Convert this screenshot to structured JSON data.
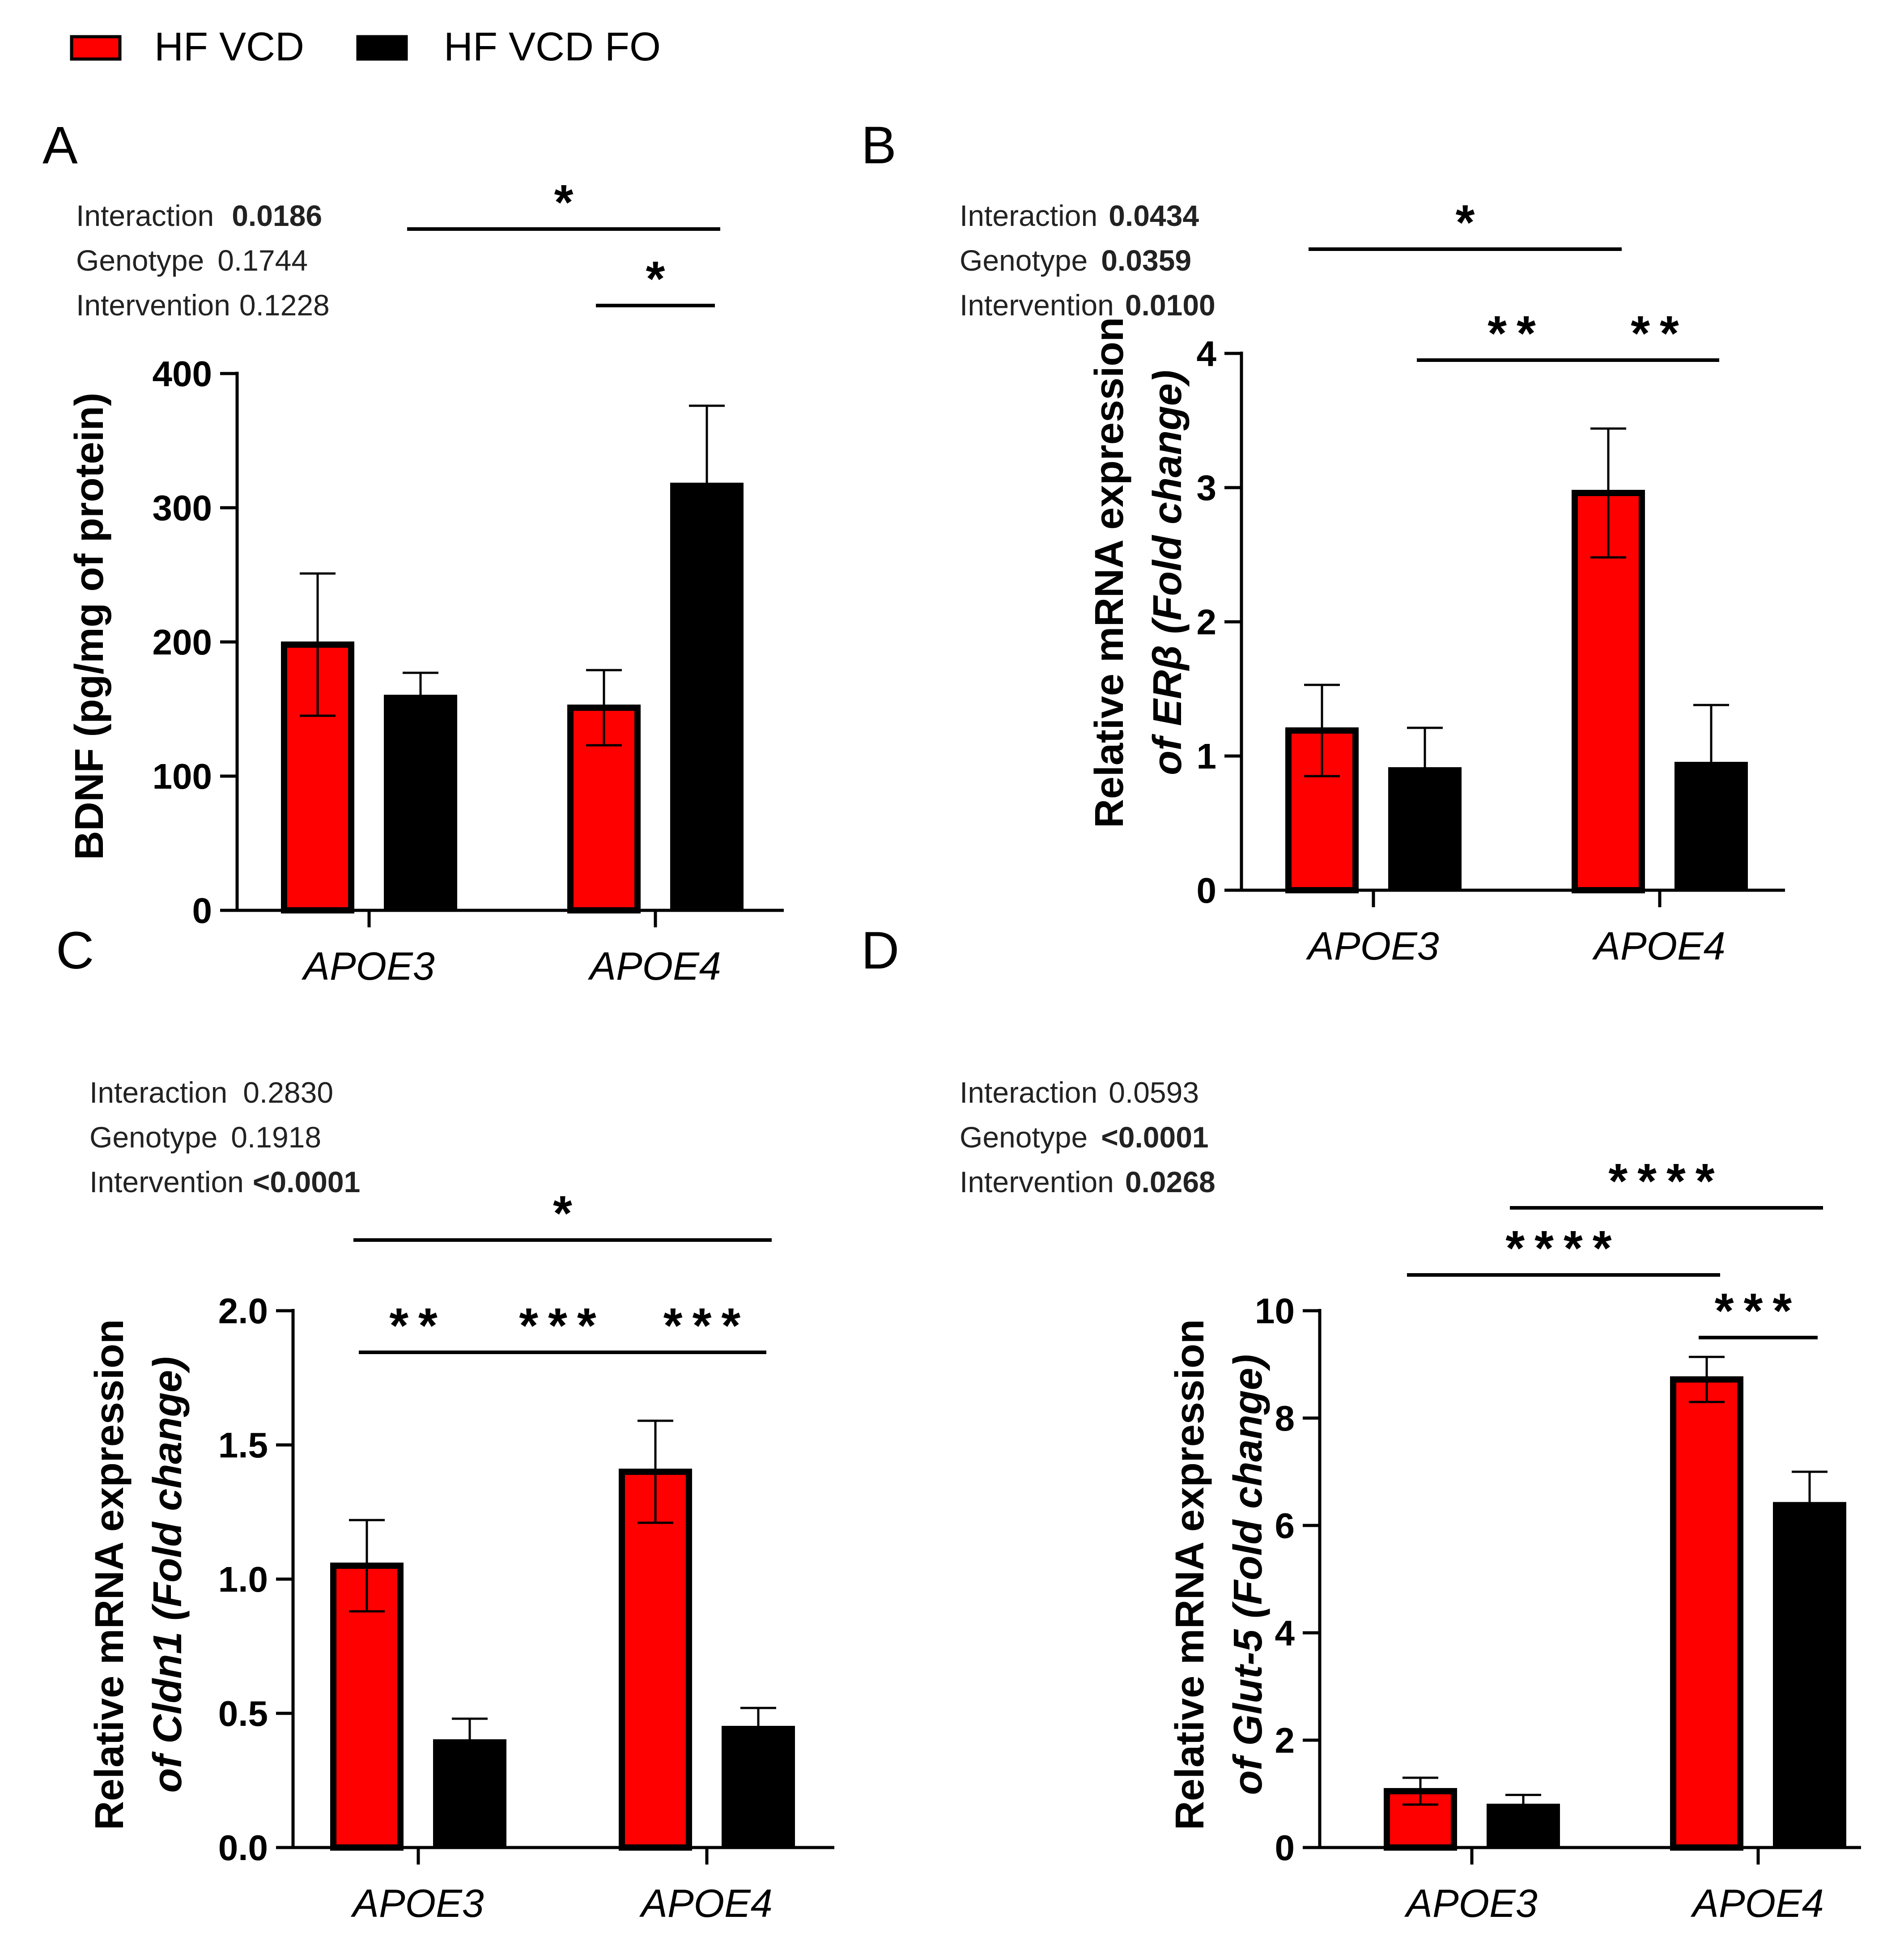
{
  "legend": {
    "items": [
      {
        "label": "HF VCD",
        "color": "#ff0000"
      },
      {
        "label": "HF VCD FO",
        "color": "#000000"
      }
    ]
  },
  "colors": {
    "red": "#ff0000",
    "black": "#000000"
  },
  "chart_data": [
    {
      "panel": "A",
      "type": "bar",
      "ylabel": "BDNF (pg/mg of protein)",
      "ylabel_parts": [
        {
          "text": "BDNF (pg/mg of protein)",
          "italic": false
        }
      ],
      "categories": [
        "APOE3",
        "APOE4"
      ],
      "series": [
        {
          "name": "HF VCD",
          "values": [
            198,
            151
          ],
          "errors": [
            53,
            28
          ]
        },
        {
          "name": "HF VCD FO",
          "values": [
            160,
            318
          ],
          "errors": [
            17,
            58
          ]
        }
      ],
      "ylim": [
        0,
        400
      ],
      "yticks": [
        "0",
        "100",
        "200",
        "300",
        "400"
      ],
      "stats": [
        {
          "label": "Interaction",
          "value": "0.0186",
          "bold": true
        },
        {
          "label": "Genotype",
          "value": "0.1744",
          "bold": false
        },
        {
          "label": "Intervention",
          "value": "0.1228",
          "bold": false
        }
      ],
      "significance": [
        {
          "from": [
            0,
            1
          ],
          "to": [
            1,
            1
          ],
          "label": "*",
          "level": 1
        },
        {
          "from": [
            1,
            0
          ],
          "to": [
            1,
            1
          ],
          "label": "*",
          "level": 0
        }
      ]
    },
    {
      "panel": "B",
      "type": "bar",
      "ylabel": "Relative mRNA expression of ERβ (Fold change)",
      "ylabel_parts": [
        {
          "text": "Relative mRNA expression",
          "italic": false
        },
        {
          "text": "of ERβ (Fold change)",
          "italic": true
        }
      ],
      "categories": [
        "APOE3",
        "APOE4"
      ],
      "series": [
        {
          "name": "HF VCD",
          "values": [
            1.19,
            2.96
          ],
          "errors": [
            0.34,
            0.48
          ]
        },
        {
          "name": "HF VCD FO",
          "values": [
            0.91,
            0.95
          ],
          "errors": [
            0.3,
            0.43
          ]
        }
      ],
      "ylim": [
        0,
        4
      ],
      "yticks": [
        "0",
        "1",
        "2",
        "3",
        "4"
      ],
      "stats": [
        {
          "label": "Interaction",
          "value": "0.0434",
          "bold": true
        },
        {
          "label": "Genotype",
          "value": "0.0359",
          "bold": true
        },
        {
          "label": "Intervention",
          "value": "0.0100",
          "bold": true
        }
      ],
      "significance": [
        {
          "from": [
            0,
            0
          ],
          "to": [
            1,
            0
          ],
          "label": "*",
          "level": 1
        },
        {
          "from": [
            0,
            1
          ],
          "to": [
            1,
            0
          ],
          "label": "**",
          "level": 0
        },
        {
          "from": [
            1,
            0
          ],
          "to": [
            1,
            1
          ],
          "label": "**",
          "level": 0
        }
      ]
    },
    {
      "panel": "C",
      "type": "bar",
      "ylabel": "Relative mRNA expression of Cldn1 (Fold change)",
      "ylabel_parts": [
        {
          "text": "Relative mRNA expression",
          "italic": false
        },
        {
          "text": "of Cldn1 (Fold change)",
          "italic": true
        }
      ],
      "categories": [
        "APOE3",
        "APOE4"
      ],
      "series": [
        {
          "name": "HF VCD",
          "values": [
            1.05,
            1.4
          ],
          "errors": [
            0.17,
            0.19
          ]
        },
        {
          "name": "HF VCD FO",
          "values": [
            0.4,
            0.45
          ],
          "errors": [
            0.08,
            0.07
          ]
        }
      ],
      "ylim": [
        0,
        2.0
      ],
      "yticks": [
        "0.0",
        "0.5",
        "1.0",
        "1.5",
        "2.0"
      ],
      "stats": [
        {
          "label": "Interaction",
          "value": "0.2830",
          "bold": false
        },
        {
          "label": "Genotype",
          "value": "0.1918",
          "bold": false
        },
        {
          "label": "Intervention",
          "value": "<0.0001",
          "bold": true
        }
      ],
      "significance": [
        {
          "from": [
            0,
            0
          ],
          "to": [
            1,
            1
          ],
          "label": "*",
          "level": 1
        },
        {
          "from": [
            0,
            0
          ],
          "to": [
            0,
            1
          ],
          "label": "**",
          "level": 0
        },
        {
          "from": [
            0,
            1
          ],
          "to": [
            1,
            0
          ],
          "label": "***",
          "level": 0
        },
        {
          "from": [
            1,
            0
          ],
          "to": [
            1,
            1
          ],
          "label": "***",
          "level": 0
        }
      ]
    },
    {
      "panel": "D",
      "type": "bar",
      "ylabel": "Relative mRNA expression of Glut-5 (Fold change)",
      "ylabel_parts": [
        {
          "text": "Relative mRNA expression",
          "italic": false
        },
        {
          "text": "of Glut-5 (Fold change)",
          "italic": true
        }
      ],
      "categories": [
        "APOE3",
        "APOE4"
      ],
      "series": [
        {
          "name": "HF VCD",
          "values": [
            1.05,
            8.72
          ],
          "errors": [
            0.25,
            0.42
          ]
        },
        {
          "name": "HF VCD FO",
          "values": [
            0.8,
            6.42
          ],
          "errors": [
            0.18,
            0.58
          ]
        }
      ],
      "ylim": [
        0,
        10
      ],
      "yticks": [
        "0",
        "2",
        "4",
        "6",
        "8",
        "10"
      ],
      "stats": [
        {
          "label": "Interaction",
          "value": "0.0593",
          "bold": false
        },
        {
          "label": "Genotype",
          "value": "<0.0001",
          "bold": true
        },
        {
          "label": "Intervention",
          "value": "0.0268",
          "bold": true
        }
      ],
      "significance": [
        {
          "from": [
            0,
            1
          ],
          "to": [
            1,
            1
          ],
          "label": "****",
          "level": 2
        },
        {
          "from": [
            0,
            0
          ],
          "to": [
            1,
            0
          ],
          "label": "****",
          "level": 1
        },
        {
          "from": [
            1,
            0
          ],
          "to": [
            1,
            1
          ],
          "label": "***",
          "level": 0
        }
      ]
    }
  ]
}
